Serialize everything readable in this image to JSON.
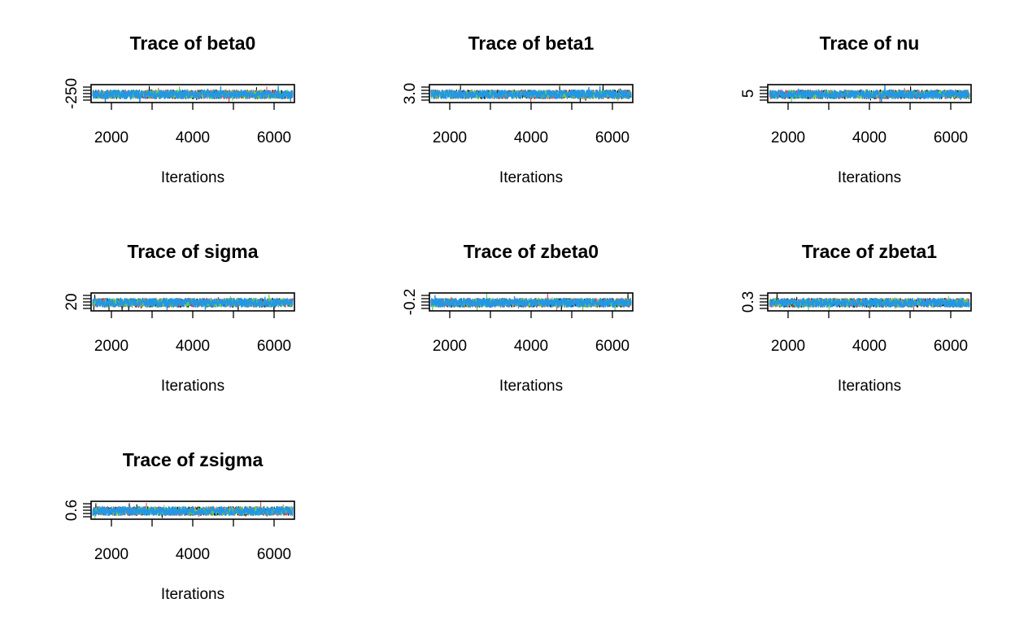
{
  "figure": {
    "palette": [
      "#000000",
      "#DF536B",
      "#61D04F",
      "#2297E6"
    ]
  },
  "chart_data": [
    {
      "type": "line",
      "title": "Trace of beta0",
      "xlabel": "Iterations",
      "ylabel": "",
      "xlim": [
        1500,
        6500
      ],
      "x_ticks": [
        "2000",
        "4000",
        "6000"
      ],
      "x_tick_values": [
        2000,
        3000,
        4000,
        5000,
        6000
      ],
      "y_tick_labels": [
        "-250"
      ],
      "series_count": 4,
      "grid": false
    },
    {
      "type": "line",
      "title": "Trace of beta1",
      "xlabel": "Iterations",
      "ylabel": "",
      "xlim": [
        1500,
        6500
      ],
      "x_ticks": [
        "2000",
        "4000",
        "6000"
      ],
      "x_tick_values": [
        2000,
        3000,
        4000,
        5000,
        6000
      ],
      "y_tick_labels": [
        "3.0"
      ],
      "series_count": 4,
      "grid": false
    },
    {
      "type": "line",
      "title": "Trace of nu",
      "xlabel": "Iterations",
      "ylabel": "",
      "xlim": [
        1500,
        6500
      ],
      "x_ticks": [
        "2000",
        "4000",
        "6000"
      ],
      "x_tick_values": [
        2000,
        3000,
        4000,
        5000,
        6000
      ],
      "y_tick_labels": [
        "5"
      ],
      "series_count": 4,
      "grid": false
    },
    {
      "type": "line",
      "title": "Trace of sigma",
      "xlabel": "Iterations",
      "ylabel": "",
      "xlim": [
        1500,
        6500
      ],
      "x_ticks": [
        "2000",
        "4000",
        "6000"
      ],
      "x_tick_values": [
        2000,
        3000,
        4000,
        5000,
        6000
      ],
      "y_tick_labels": [
        "20"
      ],
      "series_count": 4,
      "grid": false
    },
    {
      "type": "line",
      "title": "Trace of zbeta0",
      "xlabel": "Iterations",
      "ylabel": "",
      "xlim": [
        1500,
        6500
      ],
      "x_ticks": [
        "2000",
        "4000",
        "6000"
      ],
      "x_tick_values": [
        2000,
        3000,
        4000,
        5000,
        6000
      ],
      "y_tick_labels": [
        "-0.2"
      ],
      "series_count": 4,
      "grid": false
    },
    {
      "type": "line",
      "title": "Trace of zbeta1",
      "xlabel": "Iterations",
      "ylabel": "",
      "xlim": [
        1500,
        6500
      ],
      "x_ticks": [
        "2000",
        "4000",
        "6000"
      ],
      "x_tick_values": [
        2000,
        3000,
        4000,
        5000,
        6000
      ],
      "y_tick_labels": [
        "0.3"
      ],
      "series_count": 4,
      "grid": false
    },
    {
      "type": "line",
      "title": "Trace of zsigma",
      "xlabel": "Iterations",
      "ylabel": "",
      "xlim": [
        1500,
        6500
      ],
      "x_ticks": [
        "2000",
        "4000",
        "6000"
      ],
      "x_tick_values": [
        2000,
        3000,
        4000,
        5000,
        6000
      ],
      "y_tick_labels": [
        "0.6"
      ],
      "series_count": 4,
      "grid": false
    }
  ]
}
